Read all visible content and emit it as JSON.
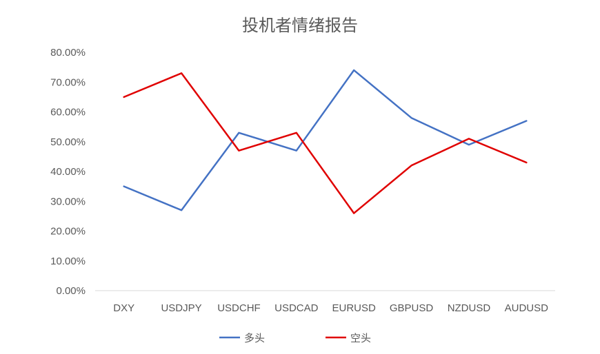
{
  "chart_data": {
    "type": "line",
    "title": "投机者情绪报告",
    "categories": [
      "DXY",
      "USDJPY",
      "USDCHF",
      "USDCAD",
      "EURUSD",
      "GBPUSD",
      "NZDUSD",
      "AUDUSD"
    ],
    "y_ticks": [
      "0.00%",
      "10.00%",
      "20.00%",
      "30.00%",
      "40.00%",
      "50.00%",
      "60.00%",
      "70.00%",
      "80.00%"
    ],
    "ylim": [
      0,
      80
    ],
    "grid": false,
    "legend_position": "bottom",
    "series": [
      {
        "name": "多头",
        "color": "#4472C4",
        "values": [
          35,
          27,
          53,
          47,
          74,
          58,
          49,
          57
        ]
      },
      {
        "name": "空头",
        "color": "#E00000",
        "values": [
          65,
          73,
          47,
          53,
          26,
          42,
          51,
          43
        ]
      }
    ]
  }
}
